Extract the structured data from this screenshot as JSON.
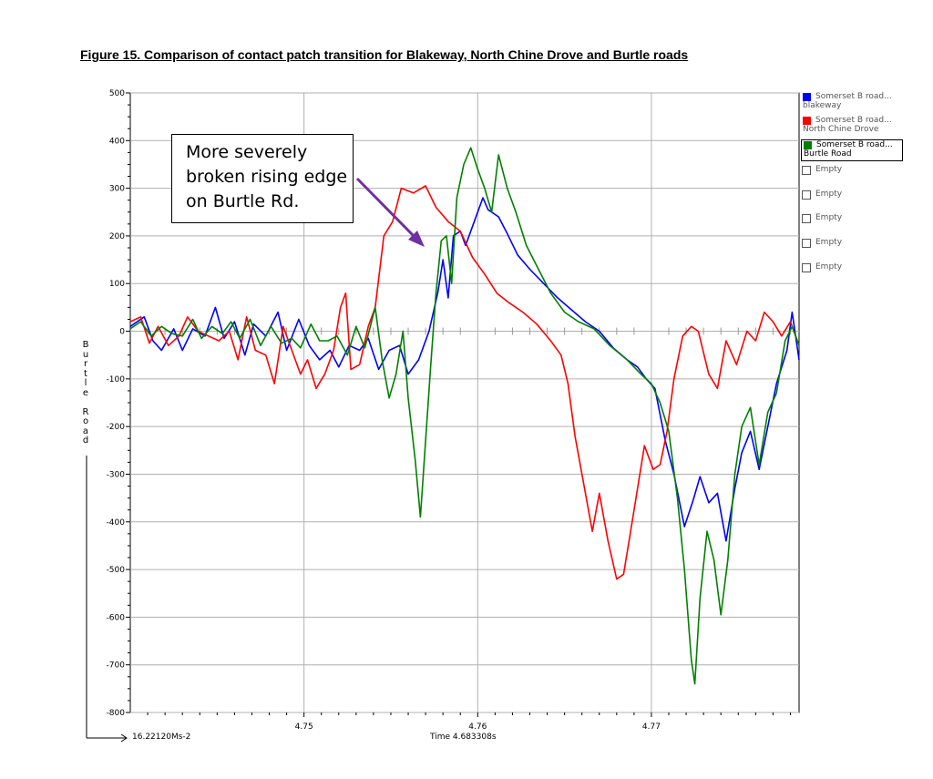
{
  "figure_title": "Figure 15. Comparison of contact patch transition for Blakeway, North Chine Drove and Burtle roads",
  "annotation": {
    "line1": "More severely",
    "line2": "broken rising edge",
    "line3": "on Burtle Rd."
  },
  "y_axis_label": "Burtle Road",
  "x_axis_left_label": "16.22120Ms-2",
  "x_axis_center_label": "Time 4.683308s",
  "legend": {
    "items": [
      {
        "line1": "Somerset B road...",
        "line2": "blakeway",
        "color": "#0000ff"
      },
      {
        "line1": "Somerset B road...",
        "line2": "North Chine Drove",
        "color": "#ff0000"
      },
      {
        "line1": "Somerset B road...",
        "line2": "Burtle Road",
        "color": "#008000"
      }
    ],
    "empty_label": "Empty",
    "empty_slots": [
      "Empty",
      "Empty",
      "Empty",
      "Empty",
      "Empty"
    ]
  },
  "chart_data": {
    "type": "line",
    "title": "",
    "xlim": [
      4.74,
      4.7785
    ],
    "ylim": [
      -800,
      500
    ],
    "x_ticks": [
      4.75,
      4.76,
      4.77
    ],
    "x_tick_labels": [
      "4.75",
      "4.76",
      "4.77"
    ],
    "y_ticks": [
      500,
      400,
      300,
      200,
      100,
      0,
      -100,
      -200,
      -300,
      -400,
      -500,
      -600,
      -700,
      -800
    ],
    "grid": true,
    "series": [
      {
        "name": "blakeway",
        "color": "#0000ff",
        "points": [
          [
            4.74,
            10
          ],
          [
            4.7408,
            30
          ],
          [
            4.7413,
            -20
          ],
          [
            4.7418,
            -40
          ],
          [
            4.7425,
            5
          ],
          [
            4.743,
            -40
          ],
          [
            4.7436,
            5
          ],
          [
            4.7443,
            -10
          ],
          [
            4.7449,
            50
          ],
          [
            4.7454,
            -15
          ],
          [
            4.746,
            20
          ],
          [
            4.7466,
            -50
          ],
          [
            4.7471,
            15
          ],
          [
            4.7478,
            -10
          ],
          [
            4.7485,
            40
          ],
          [
            4.749,
            -40
          ],
          [
            4.7497,
            25
          ],
          [
            4.7503,
            -30
          ],
          [
            4.7509,
            -60
          ],
          [
            4.7515,
            -40
          ],
          [
            4.752,
            -75
          ],
          [
            4.7526,
            -30
          ],
          [
            4.7532,
            -40
          ],
          [
            4.7537,
            -15
          ],
          [
            4.7543,
            -80
          ],
          [
            4.7549,
            -40
          ],
          [
            4.7555,
            -30
          ],
          [
            4.756,
            -90
          ],
          [
            4.7566,
            -60
          ],
          [
            4.7572,
            0
          ],
          [
            4.7577,
            80
          ],
          [
            4.758,
            150
          ],
          [
            4.7583,
            70
          ],
          [
            4.7586,
            200
          ],
          [
            4.759,
            210
          ],
          [
            4.7593,
            180
          ],
          [
            4.7598,
            230
          ],
          [
            4.7603,
            280
          ],
          [
            4.7606,
            255
          ],
          [
            4.7612,
            240
          ],
          [
            4.7617,
            205
          ],
          [
            4.7623,
            160
          ],
          [
            4.763,
            130
          ],
          [
            4.7638,
            100
          ],
          [
            4.7646,
            70
          ],
          [
            4.7654,
            45
          ],
          [
            4.7662,
            20
          ],
          [
            4.767,
            0
          ],
          [
            4.7678,
            -35
          ],
          [
            4.7686,
            -60
          ],
          [
            4.7692,
            -75
          ],
          [
            4.7697,
            -100
          ],
          [
            4.7702,
            -120
          ],
          [
            4.7708,
            -230
          ],
          [
            4.7713,
            -300
          ],
          [
            4.7719,
            -410
          ],
          [
            4.7724,
            -355
          ],
          [
            4.7728,
            -305
          ],
          [
            4.7733,
            -360
          ],
          [
            4.7738,
            -340
          ],
          [
            4.7743,
            -440
          ],
          [
            4.7748,
            -330
          ],
          [
            4.7752,
            -255
          ],
          [
            4.7757,
            -210
          ],
          [
            4.7762,
            -290
          ],
          [
            4.7767,
            -200
          ],
          [
            4.7772,
            -110
          ],
          [
            4.7778,
            -40
          ],
          [
            4.7781,
            40
          ],
          [
            4.7785,
            -60
          ]
        ]
      },
      {
        "name": "North Chine Drove",
        "color": "#ff0000",
        "points": [
          [
            4.74,
            20
          ],
          [
            4.7406,
            30
          ],
          [
            4.7411,
            -25
          ],
          [
            4.7416,
            10
          ],
          [
            4.7422,
            -30
          ],
          [
            4.7428,
            -10
          ],
          [
            4.7433,
            30
          ],
          [
            4.7439,
            0
          ],
          [
            4.7445,
            -10
          ],
          [
            4.7451,
            -20
          ],
          [
            4.7457,
            0
          ],
          [
            4.7462,
            -60
          ],
          [
            4.7467,
            30
          ],
          [
            4.7472,
            -40
          ],
          [
            4.7478,
            -50
          ],
          [
            4.7483,
            -110
          ],
          [
            4.7488,
            10
          ],
          [
            4.7493,
            -40
          ],
          [
            4.7498,
            -90
          ],
          [
            4.7502,
            -60
          ],
          [
            4.7507,
            -120
          ],
          [
            4.7512,
            -90
          ],
          [
            4.7517,
            -40
          ],
          [
            4.7521,
            50
          ],
          [
            4.7524,
            80
          ],
          [
            4.7527,
            -80
          ],
          [
            4.7532,
            -70
          ],
          [
            4.7537,
            10
          ],
          [
            4.7541,
            50
          ],
          [
            4.7546,
            200
          ],
          [
            4.7551,
            230
          ],
          [
            4.7556,
            300
          ],
          [
            4.7563,
            290
          ],
          [
            4.757,
            305
          ],
          [
            4.7576,
            260
          ],
          [
            4.7583,
            230
          ],
          [
            4.759,
            210
          ],
          [
            4.7597,
            155
          ],
          [
            4.7604,
            120
          ],
          [
            4.7611,
            80
          ],
          [
            4.7618,
            60
          ],
          [
            4.7626,
            40
          ],
          [
            4.7634,
            15
          ],
          [
            4.7642,
            -20
          ],
          [
            4.7648,
            -50
          ],
          [
            4.7652,
            -110
          ],
          [
            4.7656,
            -220
          ],
          [
            4.7661,
            -320
          ],
          [
            4.7666,
            -420
          ],
          [
            4.767,
            -340
          ],
          [
            4.7675,
            -440
          ],
          [
            4.768,
            -520
          ],
          [
            4.7684,
            -510
          ],
          [
            4.7688,
            -420
          ],
          [
            4.7692,
            -330
          ],
          [
            4.7696,
            -240
          ],
          [
            4.7701,
            -290
          ],
          [
            4.7705,
            -280
          ],
          [
            4.7709,
            -210
          ],
          [
            4.7713,
            -100
          ],
          [
            4.7718,
            -10
          ],
          [
            4.7723,
            10
          ],
          [
            4.7727,
            0
          ],
          [
            4.7733,
            -90
          ],
          [
            4.7738,
            -120
          ],
          [
            4.7743,
            -20
          ],
          [
            4.7749,
            -70
          ],
          [
            4.7755,
            0
          ],
          [
            4.776,
            -20
          ],
          [
            4.7765,
            40
          ],
          [
            4.777,
            20
          ],
          [
            4.7775,
            -10
          ],
          [
            4.778,
            20
          ],
          [
            4.7785,
            -30
          ]
        ]
      },
      {
        "name": "Burtle Road",
        "color": "#008000",
        "points": [
          [
            4.74,
            5
          ],
          [
            4.7406,
            20
          ],
          [
            4.7412,
            -10
          ],
          [
            4.7418,
            10
          ],
          [
            4.7424,
            -5
          ],
          [
            4.743,
            -10
          ],
          [
            4.7436,
            25
          ],
          [
            4.7441,
            -15
          ],
          [
            4.7447,
            10
          ],
          [
            4.7453,
            -5
          ],
          [
            4.7458,
            20
          ],
          [
            4.7463,
            -15
          ],
          [
            4.7469,
            25
          ],
          [
            4.7475,
            -30
          ],
          [
            4.7481,
            10
          ],
          [
            4.7487,
            -25
          ],
          [
            4.7493,
            -15
          ],
          [
            4.7498,
            -35
          ],
          [
            4.7504,
            15
          ],
          [
            4.7509,
            -20
          ],
          [
            4.7514,
            -20
          ],
          [
            4.7519,
            -10
          ],
          [
            4.7525,
            -50
          ],
          [
            4.753,
            10
          ],
          [
            4.7535,
            -35
          ],
          [
            4.7541,
            50
          ],
          [
            4.7545,
            -60
          ],
          [
            4.7549,
            -140
          ],
          [
            4.7553,
            -90
          ],
          [
            4.7557,
            0
          ],
          [
            4.756,
            -140
          ],
          [
            4.7564,
            -270
          ],
          [
            4.7567,
            -390
          ],
          [
            4.757,
            -230
          ],
          [
            4.7573,
            -70
          ],
          [
            4.7576,
            80
          ],
          [
            4.7579,
            190
          ],
          [
            4.7582,
            200
          ],
          [
            4.7585,
            100
          ],
          [
            4.7588,
            280
          ],
          [
            4.7592,
            350
          ],
          [
            4.7596,
            385
          ],
          [
            4.76,
            340
          ],
          [
            4.7604,
            300
          ],
          [
            4.7608,
            250
          ],
          [
            4.7612,
            370
          ],
          [
            4.7617,
            300
          ],
          [
            4.7622,
            250
          ],
          [
            4.7628,
            180
          ],
          [
            4.7635,
            130
          ],
          [
            4.7642,
            80
          ],
          [
            4.765,
            40
          ],
          [
            4.7658,
            20
          ],
          [
            4.7667,
            5
          ],
          [
            4.7676,
            -30
          ],
          [
            4.7686,
            -60
          ],
          [
            4.7694,
            -90
          ],
          [
            4.77,
            -110
          ],
          [
            4.7705,
            -150
          ],
          [
            4.771,
            -210
          ],
          [
            4.7715,
            -350
          ],
          [
            4.7719,
            -500
          ],
          [
            4.7723,
            -690
          ],
          [
            4.7725,
            -740
          ],
          [
            4.7728,
            -560
          ],
          [
            4.7732,
            -420
          ],
          [
            4.7736,
            -480
          ],
          [
            4.774,
            -595
          ],
          [
            4.7744,
            -480
          ],
          [
            4.7748,
            -300
          ],
          [
            4.7752,
            -200
          ],
          [
            4.7757,
            -160
          ],
          [
            4.7762,
            -280
          ],
          [
            4.7767,
            -170
          ],
          [
            4.7772,
            -130
          ],
          [
            4.7777,
            -20
          ],
          [
            4.7781,
            10
          ],
          [
            4.7785,
            -30
          ]
        ]
      }
    ]
  }
}
